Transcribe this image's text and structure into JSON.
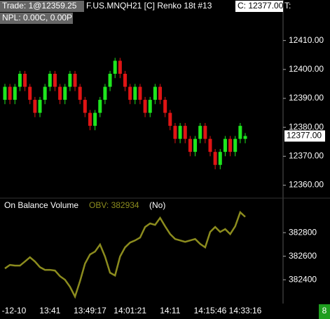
{
  "header": {
    "trade": "Trade: 1@12359.25",
    "symbol": "F.US.MNQH21 [C]  Renko 18t  #13",
    "last": "C: 12377.00",
    "t": "T:",
    "npl": "NPL: 0.00C, 0.00P",
    "badge": "8"
  },
  "chart_data": [
    {
      "type": "candlestick",
      "up_color": "#1ee61e",
      "down_color": "#e01414",
      "open": [
        12389.5,
        12394,
        12389.5,
        12394,
        12398.5,
        12394,
        12389.5,
        12385,
        12389.5,
        12394,
        12398.5,
        12394,
        12389.5,
        12394,
        12398.5,
        12394,
        12389.5,
        12385,
        12380.5,
        12385,
        12389.5,
        12394,
        12398.5,
        12403,
        12398.5,
        12394,
        12389.5,
        12394,
        12389.5,
        12385,
        12389.5,
        12394,
        12389.5,
        12385,
        12380.5,
        12376,
        12380.5,
        12376,
        12371.5,
        12376,
        12380.5,
        12376,
        12371.5,
        12367,
        12371.5,
        12376,
        12371.5,
        12376,
        12376
      ],
      "high": [
        12395,
        12395,
        12395,
        12399.5,
        12399.5,
        12395,
        12390.5,
        12390.5,
        12395,
        12399.5,
        12399.5,
        12395,
        12395,
        12399.5,
        12399.5,
        12395,
        12390.5,
        12386,
        12386,
        12390.5,
        12395,
        12399.5,
        12404,
        12404,
        12399.5,
        12395,
        12395,
        12395,
        12390.5,
        12390.5,
        12395,
        12395,
        12390.5,
        12386,
        12381.5,
        12381.5,
        12381.5,
        12377,
        12377,
        12381.5,
        12381.5,
        12377,
        12372.5,
        12372.5,
        12377,
        12377,
        12377,
        12381.5,
        12378
      ],
      "low": [
        12388,
        12388,
        12388,
        12392.5,
        12392.5,
        12388,
        12383.5,
        12383.5,
        12388,
        12392.5,
        12392.5,
        12388,
        12388,
        12392.5,
        12392.5,
        12388,
        12383.5,
        12379,
        12379,
        12383.5,
        12388,
        12392.5,
        12397,
        12397,
        12392.5,
        12388,
        12388,
        12388,
        12383.5,
        12383.5,
        12388,
        12388,
        12383.5,
        12379,
        12374.5,
        12374.5,
        12374.5,
        12370,
        12370,
        12374.5,
        12374.5,
        12370,
        12365.5,
        12365.5,
        12370,
        12370,
        12370,
        12374.5,
        12374.5
      ],
      "close": [
        12394,
        12389.5,
        12394,
        12398.5,
        12394,
        12389.5,
        12385,
        12389.5,
        12394,
        12398.5,
        12394,
        12389.5,
        12394,
        12398.5,
        12394,
        12389.5,
        12385,
        12380.5,
        12385,
        12389.5,
        12394,
        12398.5,
        12403,
        12398.5,
        12394,
        12389.5,
        12394,
        12389.5,
        12385,
        12389.5,
        12394,
        12389.5,
        12385,
        12380.5,
        12376,
        12380.5,
        12376,
        12371.5,
        12376,
        12380.5,
        12376,
        12371.5,
        12367,
        12371.5,
        12376,
        12371.5,
        12376,
        12380.5,
        12377
      ],
      "ylim": [
        12356,
        12424
      ],
      "yticks": [
        {
          "value": 12360,
          "label": "12360.00"
        },
        {
          "value": 12370,
          "label": "12370.00"
        },
        {
          "value": 12380,
          "label": "12380.00"
        },
        {
          "value": 12390,
          "label": "12390.00"
        },
        {
          "value": 12400,
          "label": "12400.00"
        },
        {
          "value": 12410,
          "label": "12410.00"
        }
      ],
      "current_price": {
        "value": 12377,
        "label": "12377.00"
      }
    },
    {
      "type": "line",
      "title": "On Balance Volume",
      "legend_text": "OBV: 382934",
      "mode": "(No)",
      "categories": [
        null,
        "-12-10",
        null,
        null,
        null,
        null,
        null,
        null,
        null,
        "13:41",
        null,
        null,
        null,
        null,
        null,
        null,
        null,
        "13:49:17",
        null,
        null,
        null,
        null,
        null,
        null,
        null,
        "14:01:21",
        null,
        null,
        null,
        null,
        null,
        null,
        null,
        "14:11",
        null,
        null,
        null,
        null,
        null,
        null,
        null,
        "14:15:46",
        null,
        null,
        null,
        null,
        null,
        null,
        "14:33:16"
      ],
      "series": [
        {
          "color": "#8c8c1e",
          "values": [
            382496,
            382526,
            382520,
            382520,
            382555,
            382591,
            382555,
            382507,
            382484,
            382484,
            382478,
            382430,
            382400,
            382340,
            382257,
            382388,
            382537,
            382615,
            382639,
            382699,
            382597,
            382460,
            382436,
            382597,
            382675,
            382716,
            382734,
            382758,
            382848,
            382878,
            382866,
            382925,
            382854,
            382788,
            382746,
            382734,
            382722,
            382734,
            382746,
            382704,
            382675,
            382806,
            382848,
            382806,
            382830,
            382788,
            382854,
            382973,
            382934
          ]
        }
      ],
      "ylim": [
        382210,
        383075
      ],
      "yticks": [
        382400,
        382600,
        382800
      ]
    }
  ]
}
